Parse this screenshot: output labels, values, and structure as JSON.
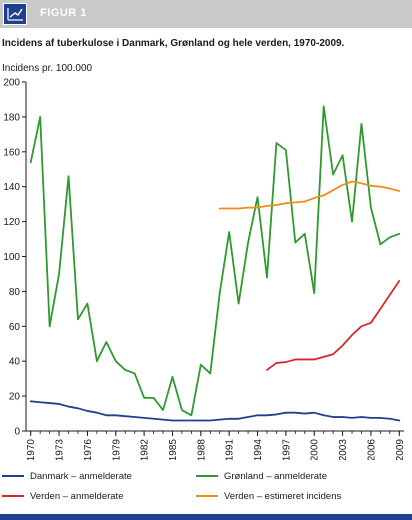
{
  "header": {
    "label": "FIGUR 1",
    "icon": "chart-line-icon"
  },
  "title": "Incidens af tuberkulose i Danmark, Grønland og hele verden, 1970-2009.",
  "chart_data": {
    "type": "line",
    "title": "Incidens af tuberkulose i Danmark, Grønland og hele verden, 1970-2009.",
    "ylabel": "Incidens pr. 100.000",
    "xlabel": "",
    "ylim": [
      0,
      200
    ],
    "yticks": [
      0,
      20,
      40,
      60,
      80,
      100,
      120,
      140,
      160,
      180,
      200
    ],
    "xlim": [
      1970,
      2009
    ],
    "xticks": [
      1970,
      1973,
      1976,
      1979,
      1982,
      1985,
      1988,
      1991,
      1994,
      1997,
      2000,
      2003,
      2006,
      2009
    ],
    "grid": false,
    "legend_position": "bottom",
    "series": [
      {
        "name": "Danmark – anmelderate",
        "color": "#1f3f8f",
        "x": [
          1970,
          1971,
          1972,
          1973,
          1974,
          1975,
          1976,
          1977,
          1978,
          1979,
          1980,
          1981,
          1982,
          1983,
          1984,
          1985,
          1986,
          1987,
          1988,
          1989,
          1990,
          1991,
          1992,
          1993,
          1994,
          1995,
          1996,
          1997,
          1998,
          1999,
          2000,
          2001,
          2002,
          2003,
          2004,
          2005,
          2006,
          2007,
          2008,
          2009
        ],
        "y": [
          17,
          16.5,
          16,
          15.5,
          14,
          13,
          11.5,
          10.5,
          9,
          9,
          8.5,
          8,
          7.5,
          7,
          6.5,
          6,
          6,
          6,
          6,
          6,
          6.5,
          7,
          7,
          8,
          9,
          9,
          9.5,
          10.5,
          10.5,
          10,
          10.5,
          9,
          8,
          8,
          7.5,
          8,
          7.5,
          7.5,
          7,
          6
        ]
      },
      {
        "name": "Grønland – anmelderate",
        "color": "#2e9a2e",
        "x": [
          1970,
          1971,
          1972,
          1973,
          1974,
          1975,
          1976,
          1977,
          1978,
          1979,
          1980,
          1981,
          1982,
          1983,
          1984,
          1985,
          1986,
          1987,
          1988,
          1989,
          1990,
          1991,
          1992,
          1993,
          1994,
          1995,
          1996,
          1997,
          1998,
          1999,
          2000,
          2001,
          2002,
          2003,
          2004,
          2005,
          2006,
          2007,
          2008,
          2009
        ],
        "y": [
          154,
          180,
          60,
          90,
          146,
          64,
          73,
          40,
          51,
          40,
          35,
          33,
          19,
          19,
          12,
          31,
          12,
          9,
          38,
          33,
          79,
          114,
          73,
          108,
          134,
          88,
          165,
          161,
          108,
          113,
          79,
          186,
          147,
          158,
          120,
          176,
          128,
          107,
          111,
          113
        ]
      },
      {
        "name": "Verden – anmelderate",
        "color": "#d42a2a",
        "x": [
          1995,
          1996,
          1997,
          1998,
          1999,
          2000,
          2001,
          2002,
          2003,
          2004,
          2005,
          2006,
          2007,
          2008,
          2009
        ],
        "y": [
          35,
          39,
          39.5,
          41,
          41,
          41,
          42.5,
          44,
          49,
          55,
          60,
          62,
          70,
          78,
          86
        ]
      },
      {
        "name": "Verden – estimeret incidens",
        "color": "#f08c1a",
        "x": [
          1990,
          1991,
          1992,
          1993,
          1994,
          1995,
          1996,
          1997,
          1998,
          1999,
          2000,
          2001,
          2002,
          2003,
          2004,
          2005,
          2006,
          2007,
          2008,
          2009
        ],
        "y": [
          127.5,
          127.5,
          127.5,
          128,
          128,
          129,
          129.5,
          130.5,
          131,
          131.5,
          133.5,
          135,
          138,
          141,
          143,
          142,
          140.5,
          140,
          139,
          137.5
        ]
      }
    ]
  },
  "legend": [
    {
      "label": "Danmark – anmelderate",
      "color": "#1f3f8f"
    },
    {
      "label": "Grønland – anmelderate",
      "color": "#2e9a2e"
    },
    {
      "label": "Verden – anmelderate",
      "color": "#d42a2a"
    },
    {
      "label": "Verden – estimeret incidens",
      "color": "#f08c1a"
    }
  ]
}
